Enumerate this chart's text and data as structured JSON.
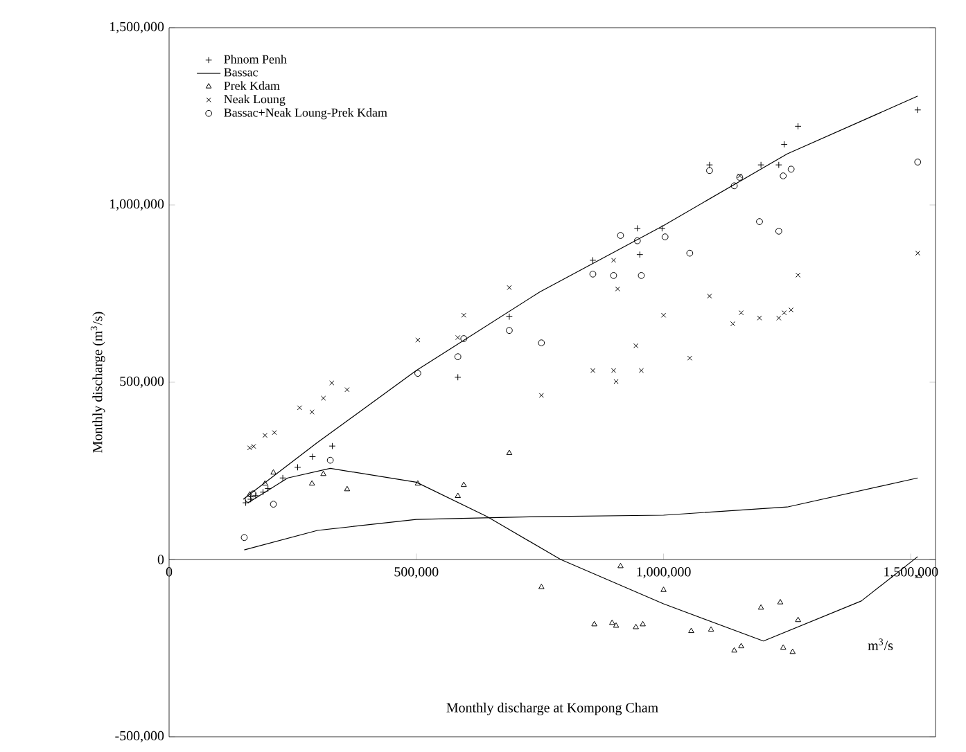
{
  "chart_data": {
    "type": "scatter",
    "xlabel": "Monthly discharge at Kompong Cham",
    "ylabel": "Monthly discharge (m$^{3}$/s)",
    "annotations": [
      "m$^{3}$/s"
    ],
    "xlim": [
      0,
      1550000
    ],
    "ylim": [
      -500000,
      1500000
    ],
    "xticks": [
      {
        "value": 0,
        "label": "0"
      },
      {
        "value": 500000,
        "label": "500,000"
      },
      {
        "value": 1000000,
        "label": "1,000,000"
      },
      {
        "value": 1500000,
        "label": "1,500,000"
      }
    ],
    "yticks": [
      {
        "value": -500000,
        "label": "-500,000"
      },
      {
        "value": 0,
        "label": "0"
      },
      {
        "value": 500000,
        "label": "500,000"
      },
      {
        "value": 1000000,
        "label": "1,000,000"
      },
      {
        "value": 1500000,
        "label": "1,500,000"
      }
    ],
    "legend": "top left",
    "grid": false,
    "series": [
      {
        "name": "Phnom Penh",
        "color": "#000000",
        "marker": "plus",
        "x": [
          155000,
          165000,
          175000,
          190000,
          200000,
          230000,
          260000,
          290000,
          330000,
          584000,
          688000,
          857000,
          947000,
          952000,
          997000,
          1093000,
          1197000,
          1233000,
          1244000,
          1272000,
          1514000
        ],
        "values": [
          160000,
          170000,
          180000,
          190000,
          200000,
          230000,
          260000,
          290000,
          320000,
          514000,
          685000,
          844000,
          934000,
          860000,
          934000,
          1113000,
          1113000,
          1113000,
          1171000,
          1222000,
          1268000
        ]
      },
      {
        "name": "Bassac",
        "type": "line",
        "color": "#000000",
        "marker": "none",
        "x": [
          152000,
          300000,
          500000,
          750000,
          1000000,
          1250000,
          1514000
        ],
        "values": [
          27000,
          82000,
          113000,
          121000,
          125000,
          148000,
          230000
        ]
      },
      {
        "name": "Prek Kdam",
        "color": "#000000",
        "marker": "triangle",
        "x": [
          163000,
          194000,
          211000,
          289000,
          312000,
          360000,
          503000,
          584000,
          596000,
          688000,
          753000,
          860000,
          896000,
          904000,
          913000,
          944000,
          958000,
          1000000,
          1056000,
          1096000,
          1143000,
          1157000,
          1197000,
          1236000,
          1242000,
          1261000,
          1272000,
          1517000
        ],
        "values": [
          183000,
          214000,
          245000,
          214000,
          241000,
          198000,
          214000,
          179000,
          210000,
          300000,
          -78000,
          -183000,
          -179000,
          -187000,
          -19000,
          -191000,
          -183000,
          -86000,
          -202000,
          -198000,
          -257000,
          -245000,
          -136000,
          -121000,
          -249000,
          -261000,
          -171000,
          -47000
        ]
      },
      {
        "name": "Neak Loung",
        "color": "#000000",
        "marker": "cross",
        "x": [
          163000,
          171000,
          194000,
          213000,
          264000,
          289000,
          312000,
          329000,
          360000,
          503000,
          584000,
          596000,
          688000,
          753000,
          857000,
          899000,
          899000,
          904000,
          907000,
          944000,
          955000,
          1000000,
          1053000,
          1093000,
          1140000,
          1154000,
          1157000,
          1194000,
          1233000,
          1244000,
          1258000,
          1272000,
          1514000
        ],
        "values": [
          315000,
          319000,
          350000,
          358000,
          428000,
          416000,
          455000,
          498000,
          479000,
          619000,
          626000,
          689000,
          767000,
          463000,
          533000,
          533000,
          844000,
          502000,
          763000,
          603000,
          533000,
          689000,
          568000,
          743000,
          665000,
          1082000,
          696000,
          681000,
          681000,
          696000,
          704000,
          802000,
          864000
        ]
      },
      {
        "name": "Bassac+Neak Loung-Prek Kdam",
        "color": "#000000",
        "marker": "circle",
        "x": [
          152000,
          160000,
          170000,
          211000,
          326000,
          503000,
          584000,
          596000,
          688000,
          753000,
          857000,
          899000,
          913000,
          947000,
          955000,
          1003000,
          1053000,
          1093000,
          1143000,
          1154000,
          1194000,
          1233000,
          1242000,
          1258000,
          1514000
        ],
        "values": [
          62000,
          170000,
          185000,
          156000,
          280000,
          525000,
          572000,
          623000,
          646000,
          611000,
          805000,
          801000,
          914000,
          899000,
          801000,
          910000,
          864000,
          1097000,
          1054000,
          1078000,
          953000,
          926000,
          1082000,
          1101000,
          1121000
        ]
      },
      {
        "type": "line",
        "color": "#000000",
        "marker": "none",
        "x": [
          150000,
          300000,
          500000,
          750000,
          1000000,
          1250000,
          1514000
        ],
        "values": [
          170000,
          330000,
          533000,
          755000,
          942000,
          1144000,
          1307000
        ]
      },
      {
        "type": "line",
        "color": "#000000",
        "marker": "none",
        "x": [
          160000,
          240000,
          326000,
          500000,
          643000,
          792000,
          1000000,
          1202000,
          1400000,
          1514000
        ],
        "values": [
          160000,
          230000,
          257000,
          218000,
          121000,
          0,
          -125000,
          -230000,
          -117000,
          8000
        ]
      }
    ]
  }
}
